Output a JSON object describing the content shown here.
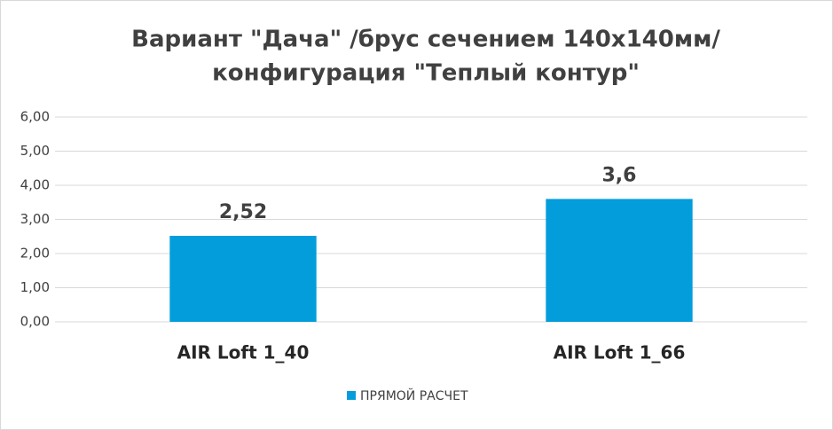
{
  "chart_data": {
    "type": "bar",
    "title": [
      "Вариант \"Дача\" /брус сечением 140х140мм/",
      "конфигурация \"Теплый контур\""
    ],
    "categories": [
      "AIR Loft 1_40",
      "AIR Loft 1_66"
    ],
    "series": [
      {
        "name": "ПРЯМОЙ РАСЧЕТ",
        "color": "#039ddb",
        "values": [
          2.52,
          3.6
        ],
        "value_labels": [
          "2,52",
          "3,6"
        ]
      }
    ],
    "ylim": [
      0,
      6
    ],
    "yticks": [
      {
        "value": 0,
        "label": "0,00"
      },
      {
        "value": 1,
        "label": "1,00"
      },
      {
        "value": 2,
        "label": "2,00"
      },
      {
        "value": 3,
        "label": "3,00"
      },
      {
        "value": 4,
        "label": "4,00"
      },
      {
        "value": 5,
        "label": "5,00"
      },
      {
        "value": 6,
        "label": "6,00"
      }
    ],
    "grid": true,
    "legend": "bottom"
  }
}
